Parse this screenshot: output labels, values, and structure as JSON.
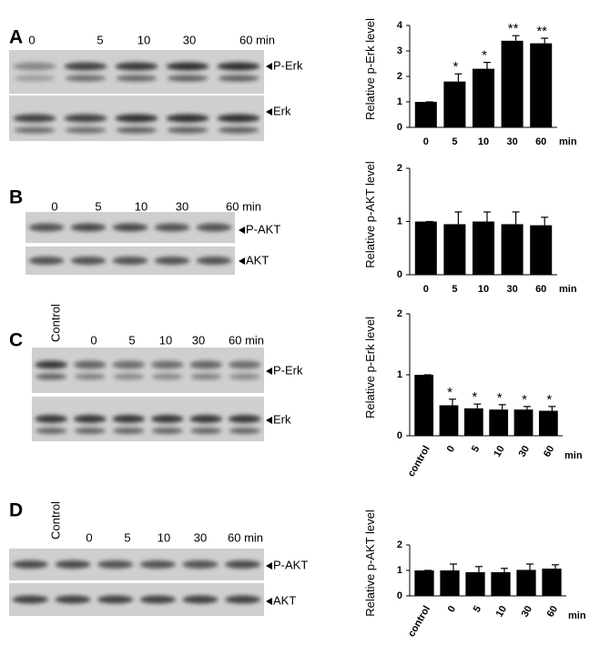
{
  "blots": [
    {
      "label": "A",
      "lanes": [
        "0",
        "5",
        "10",
        "30",
        "60 min"
      ],
      "bands": [
        "P-Erk",
        "Erk"
      ]
    },
    {
      "label": "B",
      "lanes": [
        "0",
        "5",
        "10",
        "30",
        "60 min"
      ],
      "bands": [
        "P-AKT",
        "AKT"
      ]
    },
    {
      "label": "C",
      "lanes": [
        "Control",
        "0",
        "5",
        "10",
        "30",
        "60 min"
      ],
      "bands": [
        "P-Erk",
        "Erk"
      ]
    },
    {
      "label": "D",
      "lanes": [
        "Control",
        "0",
        "5",
        "10",
        "30",
        "60 min"
      ],
      "bands": [
        "P-AKT",
        "AKT"
      ]
    }
  ],
  "chart_data": [
    {
      "type": "bar",
      "ylabel": "Relative p-Erk level",
      "categories": [
        "0",
        "5",
        "10",
        "30",
        "60"
      ],
      "x_unit": "min",
      "values": [
        1,
        1.8,
        2.3,
        3.4,
        3.3
      ],
      "errors": [
        0,
        0.3,
        0.25,
        0.2,
        0.2
      ],
      "annotations": [
        null,
        "*",
        "*",
        "**",
        "**"
      ],
      "color": "#000000",
      "ylim": [
        0,
        4
      ],
      "yticks": [
        0,
        1,
        2,
        3,
        4
      ]
    },
    {
      "type": "bar",
      "ylabel": "Relative p-AKT level",
      "categories": [
        "0",
        "5",
        "10",
        "30",
        "60"
      ],
      "x_unit": "min",
      "values": [
        1,
        0.95,
        1,
        0.95,
        0.93
      ],
      "errors": [
        0,
        0.23,
        0.18,
        0.23,
        0.15
      ],
      "color": "#000000",
      "ylim": [
        0,
        2
      ],
      "yticks": [
        0,
        1,
        2
      ]
    },
    {
      "type": "bar",
      "ylabel": "Relative p-Erk level",
      "categories": [
        "control",
        "0",
        "5",
        "10",
        "30",
        "60"
      ],
      "x_unit": "min",
      "values": [
        1,
        0.5,
        0.45,
        0.43,
        0.43,
        0.41
      ],
      "errors": [
        0,
        0.1,
        0.07,
        0.08,
        0.05,
        0.07
      ],
      "annotations": [
        null,
        "*",
        "*",
        "*",
        "*",
        "*"
      ],
      "color": "#000000",
      "ylim": [
        0,
        2
      ],
      "yticks": [
        0,
        1,
        2
      ]
    },
    {
      "type": "bar",
      "ylabel": "Relative p-AKT level",
      "categories": [
        "control",
        "0",
        "5",
        "10",
        "30",
        "60"
      ],
      "x_unit": "min",
      "values": [
        1,
        1,
        0.93,
        0.93,
        1.02,
        1.07
      ],
      "errors": [
        0,
        0.25,
        0.22,
        0.15,
        0.23,
        0.15
      ],
      "color": "#000000",
      "ylim": [
        0,
        2
      ],
      "yticks": [
        0,
        1,
        2
      ]
    }
  ]
}
